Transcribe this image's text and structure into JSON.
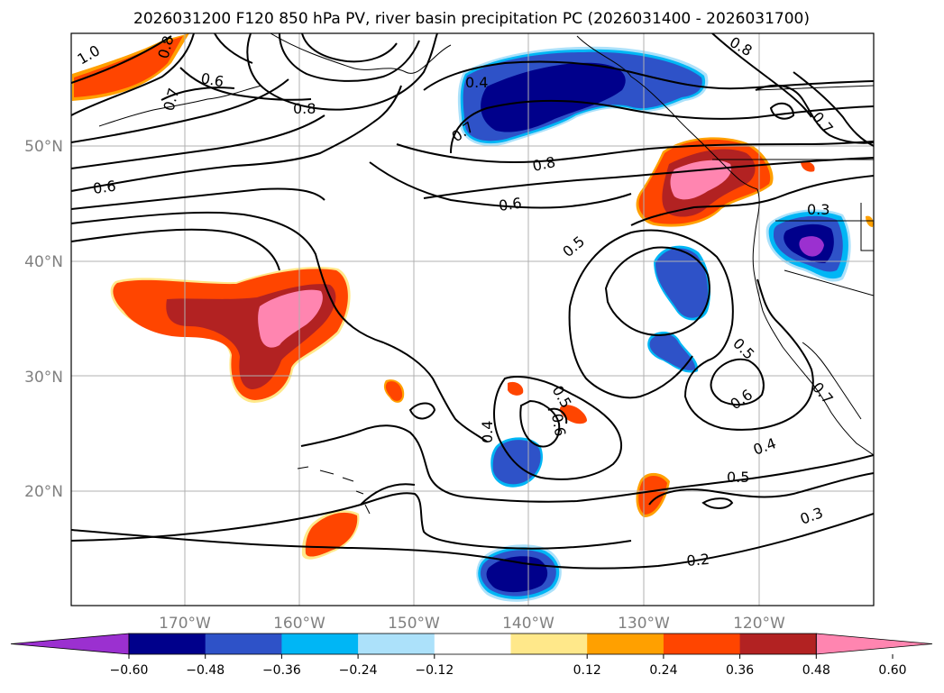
{
  "title": "2026031200 F120 850 hPa PV, river basin precipitation PC (2026031400 - 2026031700)",
  "map": {
    "lat_labels": [
      "50°N",
      "40°N",
      "30°N",
      "20°N"
    ],
    "lon_labels": [
      "170°W",
      "160°W",
      "150°W",
      "140°W",
      "130°W",
      "120°W"
    ],
    "gridline_color": "#b0b0b0",
    "axis_label_color": "#808080"
  },
  "contour_labels": [
    "1.0",
    "0.8",
    "0.7",
    "0.6",
    "0.8",
    "0.4",
    "0.7",
    "0.8",
    "0.6",
    "0.5",
    "0.5",
    "0.6",
    "0.4",
    "0.5",
    "0.4",
    "0.2",
    "0.3",
    "0.6",
    "0.5",
    "0.3",
    "0.8",
    "0.7",
    "0.7",
    "0.6"
  ],
  "colorbar": {
    "ticks": [
      "−0.60",
      "−0.48",
      "−0.36",
      "−0.24",
      "−0.12",
      "0.12",
      "0.24",
      "0.36",
      "0.48",
      "0.60"
    ],
    "colors": [
      "#9b30d0",
      "#00008b",
      "#2e52c8",
      "#00b6f5",
      "#ace1fa",
      "#ffffff",
      "#ffe88a",
      "#ffa000",
      "#ff4500",
      "#b22222",
      "#ff85b0"
    ]
  }
}
